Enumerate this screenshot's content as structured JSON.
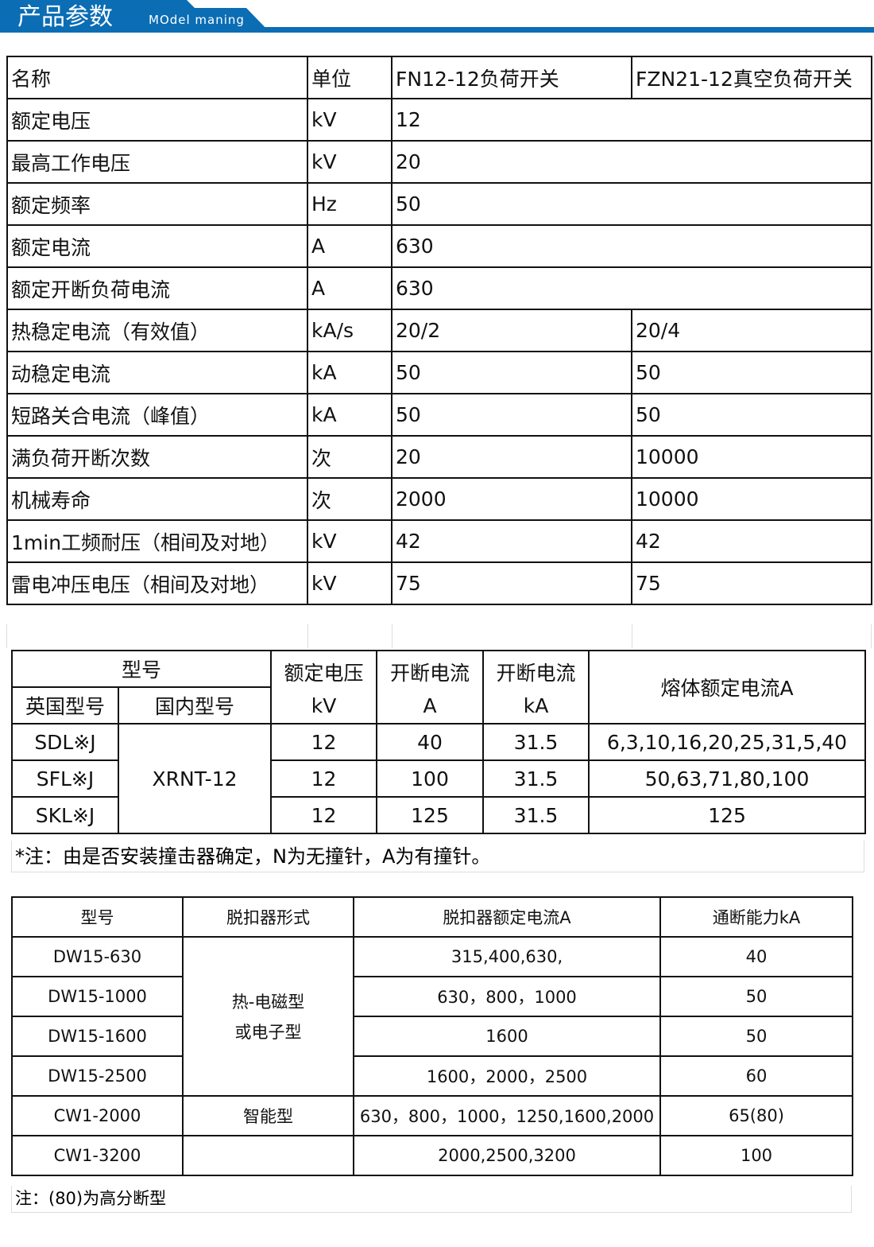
{
  "header": {
    "title": "产品参数",
    "subtitle": "MOdel maning",
    "accent": "#0b6db4"
  },
  "table1": {
    "headers": [
      "名称",
      "单位",
      "FN12-12负荷开关",
      "FZN21-12真空负荷开关"
    ],
    "rows": [
      {
        "name": "额定电压",
        "unit": "kV",
        "v": "12"
      },
      {
        "name": "最高工作电压",
        "unit": "kV",
        "v": "20"
      },
      {
        "name": "额定频率",
        "unit": "Hz",
        "v": "50"
      },
      {
        "name": "额定电流",
        "unit": "A",
        "v": "630"
      },
      {
        "name": "额定开断负荷电流",
        "unit": "A",
        "v": "630"
      },
      {
        "name": "热稳定电流（有效值）",
        "unit": "kA/s",
        "a": "20/2",
        "b": "20/4"
      },
      {
        "name": "动稳定电流",
        "unit": "kA",
        "a": "50",
        "b": "50"
      },
      {
        "name": "短路关合电流（峰值）",
        "unit": "kA",
        "a": "50",
        "b": "50"
      },
      {
        "name": "满负荷开断次数",
        "unit": "次",
        "a": "20",
        "b": "10000"
      },
      {
        "name": "机械寿命",
        "unit": "次",
        "a": "2000",
        "b": "10000"
      },
      {
        "name": "1min工频耐压（相间及对地）",
        "unit": "kV",
        "a": "42",
        "b": "42"
      },
      {
        "name": "雷电冲压电压（相间及对地）",
        "unit": "kV",
        "a": "75",
        "b": "75"
      }
    ]
  },
  "table2": {
    "h_model": "型号",
    "h_uk": "英国型号",
    "h_cn": "国内型号",
    "h_volt": "额定电压",
    "h_volt_u": "kV",
    "h_break_a": "开断电流",
    "h_break_a_u": "A",
    "h_break_ka": "开断电流",
    "h_break_ka_u": "kA",
    "h_fuse": "熔体额定电流A",
    "cn_model": "XRNT-12",
    "rows": [
      {
        "uk": "SDL※J",
        "volt": "12",
        "a": "40",
        "ka": "31.5",
        "fuse": "6,3,10,16,20,25,31,5,40"
      },
      {
        "uk": "SFL※J",
        "volt": "12",
        "a": "100",
        "ka": "31.5",
        "fuse": "50,63,71,80,100"
      },
      {
        "uk": "SKL※J",
        "volt": "12",
        "a": "125",
        "ka": "31.5",
        "fuse": "125"
      }
    ],
    "note": "*注：由是否安装撞击器确定，N为无撞针，A为有撞针。"
  },
  "table3": {
    "headers": [
      "型号",
      "脱扣器形式",
      "脱扣器额定电流A",
      "通断能力kA"
    ],
    "trip_type_1": "热-电磁型",
    "trip_type_1b": "或电子型",
    "trip_type_2": "智能型",
    "rows": [
      {
        "model": "DW15-630",
        "current": "315,400,630,",
        "cap": "40"
      },
      {
        "model": "DW15-1000",
        "current": "630，800，1000",
        "cap": "50"
      },
      {
        "model": "DW15-1600",
        "current": "1600",
        "cap": "50"
      },
      {
        "model": "DW15-2500",
        "current": "1600，2000，2500",
        "cap": "60"
      },
      {
        "model": "CW1-2000",
        "current": "630，800，1000，1250,1600,2000",
        "cap": "65(80)"
      },
      {
        "model": "CW1-3200",
        "current": "2000,2500,3200",
        "cap": "100"
      }
    ],
    "note": "注：(80)为高分断型"
  }
}
